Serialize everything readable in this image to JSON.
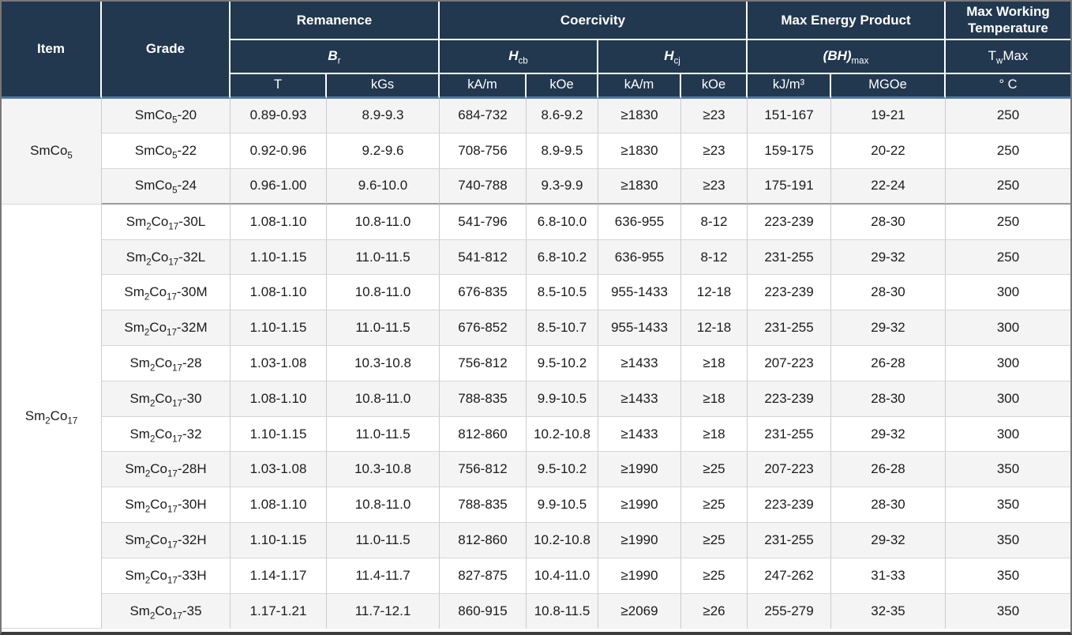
{
  "table": {
    "header": {
      "item": "Item",
      "grade": "Grade",
      "remanence": "Remanence",
      "coercivity": "Coercivity",
      "max_energy_product": "Max Energy Product",
      "max_working_temperature": "Max Working Temperature",
      "symbols": {
        "br": [
          [
            "B",
            "r"
          ]
        ],
        "hcb": [
          [
            "H",
            "cb"
          ]
        ],
        "hcj": [
          [
            "H",
            "cj"
          ]
        ],
        "bhmax": [
          [
            "(BH)",
            "max"
          ]
        ],
        "twmax": [
          [
            "T",
            "w"
          ],
          [
            "Max",
            ""
          ]
        ]
      },
      "units": [
        "T",
        "kGs",
        "kA/m",
        "kOe",
        "kA/m",
        "kOe",
        "kJ/m³",
        "MGOe",
        "° C"
      ]
    },
    "groups": [
      {
        "item_parts": [
          [
            "SmCo",
            "5"
          ]
        ],
        "rows": [
          {
            "grade_parts": [
              [
                "SmCo",
                "5"
              ],
              [
                "-20",
                ""
              ]
            ],
            "values": [
              "0.89-0.93",
              "8.9-9.3",
              "684-732",
              "8.6-9.2",
              "≥1830",
              "≥23",
              "151-167",
              "19-21",
              "250"
            ]
          },
          {
            "grade_parts": [
              [
                "SmCo",
                "5"
              ],
              [
                "-22",
                ""
              ]
            ],
            "values": [
              "0.92-0.96",
              "9.2-9.6",
              "708-756",
              "8.9-9.5",
              "≥1830",
              "≥23",
              "159-175",
              "20-22",
              "250"
            ]
          },
          {
            "grade_parts": [
              [
                "SmCo",
                "5"
              ],
              [
                "-24",
                ""
              ]
            ],
            "values": [
              "0.96-1.00",
              "9.6-10.0",
              "740-788",
              "9.3-9.9",
              "≥1830",
              "≥23",
              "175-191",
              "22-24",
              "250"
            ]
          }
        ]
      },
      {
        "item_parts": [
          [
            "Sm",
            "2"
          ],
          [
            "Co",
            "17"
          ]
        ],
        "rows": [
          {
            "grade_parts": [
              [
                "Sm",
                "2"
              ],
              [
                "Co",
                "17"
              ],
              [
                "-30L",
                ""
              ]
            ],
            "values": [
              "1.08-1.10",
              "10.8-11.0",
              "541-796",
              "6.8-10.0",
              "636-955",
              "8-12",
              "223-239",
              "28-30",
              "250"
            ]
          },
          {
            "grade_parts": [
              [
                "Sm",
                "2"
              ],
              [
                "Co",
                "17"
              ],
              [
                "-32L",
                ""
              ]
            ],
            "values": [
              "1.10-1.15",
              "11.0-11.5",
              "541-812",
              "6.8-10.2",
              "636-955",
              "8-12",
              "231-255",
              "29-32",
              "250"
            ]
          },
          {
            "grade_parts": [
              [
                "Sm",
                "2"
              ],
              [
                "Co",
                "17"
              ],
              [
                "-30M",
                ""
              ]
            ],
            "values": [
              "1.08-1.10",
              "10.8-11.0",
              "676-835",
              "8.5-10.5",
              "955-1433",
              "12-18",
              "223-239",
              "28-30",
              "300"
            ]
          },
          {
            "grade_parts": [
              [
                "Sm",
                "2"
              ],
              [
                "Co",
                "17"
              ],
              [
                "-32M",
                ""
              ]
            ],
            "values": [
              "1.10-1.15",
              "11.0-11.5",
              "676-852",
              "8.5-10.7",
              "955-1433",
              "12-18",
              "231-255",
              "29-32",
              "300"
            ]
          },
          {
            "grade_parts": [
              [
                "Sm",
                "2"
              ],
              [
                "Co",
                "17"
              ],
              [
                "-28",
                ""
              ]
            ],
            "values": [
              "1.03-1.08",
              "10.3-10.8",
              "756-812",
              "9.5-10.2",
              "≥1433",
              "≥18",
              "207-223",
              "26-28",
              "300"
            ]
          },
          {
            "grade_parts": [
              [
                "Sm",
                "2"
              ],
              [
                "Co",
                "17"
              ],
              [
                "-30",
                ""
              ]
            ],
            "values": [
              "1.08-1.10",
              "10.8-11.0",
              "788-835",
              "9.9-10.5",
              "≥1433",
              "≥18",
              "223-239",
              "28-30",
              "300"
            ]
          },
          {
            "grade_parts": [
              [
                "Sm",
                "2"
              ],
              [
                "Co",
                "17"
              ],
              [
                "-32",
                ""
              ]
            ],
            "values": [
              "1.10-1.15",
              "11.0-11.5",
              "812-860",
              "10.2-10.8",
              "≥1433",
              "≥18",
              "231-255",
              "29-32",
              "300"
            ]
          },
          {
            "grade_parts": [
              [
                "Sm",
                "2"
              ],
              [
                "Co",
                "17"
              ],
              [
                "-28H",
                ""
              ]
            ],
            "values": [
              "1.03-1.08",
              "10.3-10.8",
              "756-812",
              "9.5-10.2",
              "≥1990",
              "≥25",
              "207-223",
              "26-28",
              "350"
            ]
          },
          {
            "grade_parts": [
              [
                "Sm",
                "2"
              ],
              [
                "Co",
                "17"
              ],
              [
                "-30H",
                ""
              ]
            ],
            "values": [
              "1.08-1.10",
              "10.8-11.0",
              "788-835",
              "9.9-10.5",
              "≥1990",
              "≥25",
              "223-239",
              "28-30",
              "350"
            ]
          },
          {
            "grade_parts": [
              [
                "Sm",
                "2"
              ],
              [
                "Co",
                "17"
              ],
              [
                "-32H",
                ""
              ]
            ],
            "values": [
              "1.10-1.15",
              "11.0-11.5",
              "812-860",
              "10.2-10.8",
              "≥1990",
              "≥25",
              "231-255",
              "29-32",
              "350"
            ]
          },
          {
            "grade_parts": [
              [
                "Sm",
                "2"
              ],
              [
                "Co",
                "17"
              ],
              [
                "-33H",
                ""
              ]
            ],
            "values": [
              "1.14-1.17",
              "11.4-11.7",
              "827-875",
              "10.4-11.0",
              "≥1990",
              "≥25",
              "247-262",
              "31-33",
              "350"
            ]
          },
          {
            "grade_parts": [
              [
                "Sm",
                "2"
              ],
              [
                "Co",
                "17"
              ],
              [
                "-35",
                ""
              ]
            ],
            "values": [
              "1.17-1.21",
              "11.7-12.1",
              "860-915",
              "10.8-11.5",
              "≥2069",
              "≥26",
              "255-279",
              "32-35",
              "350"
            ]
          }
        ]
      }
    ]
  },
  "colors": {
    "header_bg": "#21384f",
    "header_text": "#ffffff",
    "accent_line": "#4d74a2",
    "row_alt_bg": "#f4f4f4",
    "row_bg": "#ffffff",
    "body_text": "#1b1b1b",
    "grid_line": "#cccccc",
    "group_line": "#9c9c9c",
    "outer_border": "#787878"
  }
}
